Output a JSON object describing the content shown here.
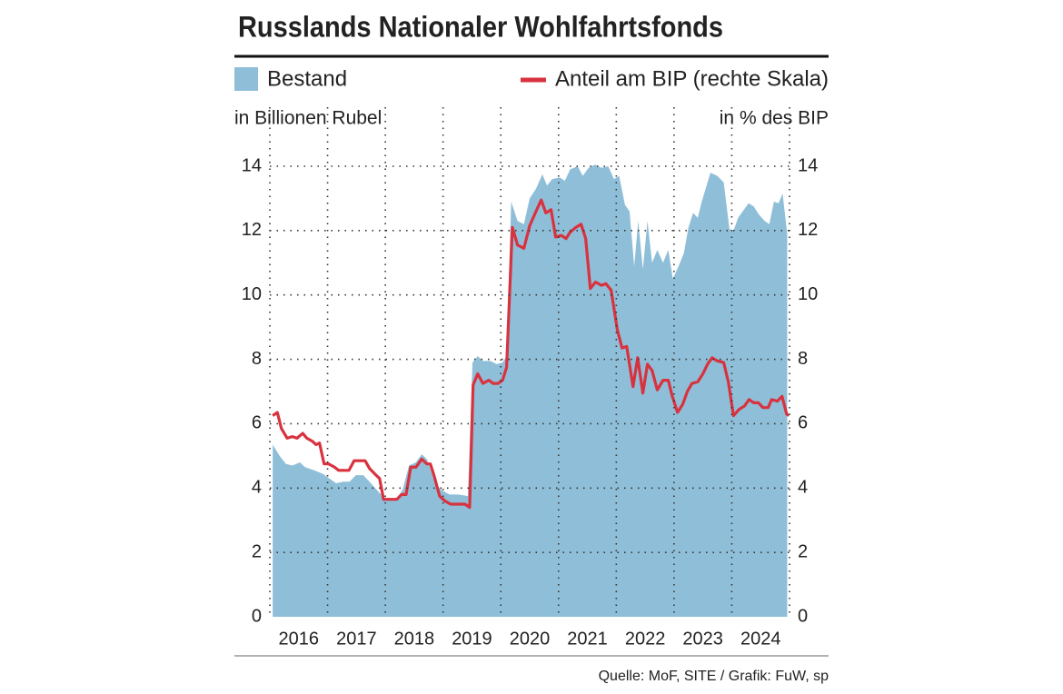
{
  "chart_data": {
    "type": "area",
    "title": "Russlands Nationaler Wohlfahrtsfonds",
    "y_label": "in Billionen Rubel",
    "y2_label": "in % des BIP",
    "source": "Quelle: MoF, SITE / Grafik: FuW, sp",
    "legend": "top",
    "grid": true,
    "xlim": [
      2016,
      2025
    ],
    "xticks": [
      2016,
      2017,
      2018,
      2019,
      2020,
      2021,
      2022,
      2023,
      2024
    ],
    "ylim": [
      0,
      14
    ],
    "yticks": [
      0,
      2,
      4,
      6,
      8,
      10,
      12,
      14
    ],
    "y2lim": [
      0,
      14
    ],
    "y2ticks": [
      0,
      2,
      4,
      6,
      8,
      10,
      12,
      14
    ],
    "series": [
      {
        "name": "Bestand",
        "type": "area",
        "color": "#8fbfd8",
        "x": [
          2016.05,
          2016.17,
          2016.28,
          2016.39,
          2016.52,
          2016.61,
          2016.77,
          2016.91,
          2016.99,
          2017.15,
          2017.27,
          2017.38,
          2017.49,
          2017.62,
          2017.75,
          2017.9,
          2017.98,
          2018.09,
          2018.2,
          2018.3,
          2018.41,
          2018.53,
          2018.63,
          2018.72,
          2018.85,
          2018.96,
          2019.11,
          2019.27,
          2019.43,
          2019.51,
          2019.6,
          2019.69,
          2019.82,
          2019.93,
          2020.03,
          2020.1,
          2020.18,
          2020.29,
          2020.4,
          2020.5,
          2020.61,
          2020.72,
          2020.8,
          2020.89,
          2021.02,
          2021.11,
          2021.2,
          2021.33,
          2021.42,
          2021.52,
          2021.63,
          2021.74,
          2021.86,
          2021.96,
          2022.05,
          2022.15,
          2022.23,
          2022.31,
          2022.38,
          2022.46,
          2022.54,
          2022.62,
          2022.71,
          2022.81,
          2022.9,
          2022.98,
          2023.08,
          2023.17,
          2023.25,
          2023.33,
          2023.41,
          2023.48,
          2023.63,
          2023.75,
          2023.86,
          2023.96,
          2024.03,
          2024.11,
          2024.19,
          2024.29,
          2024.38,
          2024.47,
          2024.57,
          2024.65,
          2024.73,
          2024.81,
          2024.88,
          2024.96
        ],
        "values": [
          5.35,
          5.0,
          4.75,
          4.7,
          4.8,
          4.65,
          4.55,
          4.45,
          4.35,
          4.15,
          4.2,
          4.2,
          4.4,
          4.4,
          4.15,
          3.85,
          3.7,
          3.65,
          3.65,
          3.95,
          4.7,
          4.8,
          5.05,
          4.9,
          4.2,
          3.95,
          3.8,
          3.8,
          3.75,
          7.9,
          8.1,
          7.95,
          7.95,
          7.85,
          7.9,
          8.1,
          12.9,
          12.3,
          12.2,
          13.0,
          13.3,
          13.75,
          13.4,
          13.6,
          13.65,
          13.55,
          13.9,
          14.0,
          13.7,
          13.95,
          14.05,
          13.95,
          14.0,
          13.6,
          13.7,
          12.8,
          12.6,
          10.9,
          12.3,
          10.8,
          12.3,
          11.0,
          11.4,
          11.0,
          11.4,
          10.5,
          10.9,
          11.3,
          12.1,
          12.55,
          12.4,
          12.9,
          13.8,
          13.7,
          13.5,
          12.05,
          12.0,
          12.4,
          12.6,
          12.85,
          12.75,
          12.5,
          12.3,
          12.2,
          12.9,
          12.85,
          13.15,
          11.9
        ]
      },
      {
        "name": "Anteil am BIP (rechte Skala)",
        "type": "line",
        "axis": "y2",
        "color": "#d9323f",
        "x": [
          2016.05,
          2016.13,
          2016.2,
          2016.3,
          2016.39,
          2016.47,
          2016.57,
          2016.64,
          2016.74,
          2016.8,
          2016.86,
          2016.94,
          2017.02,
          2017.12,
          2017.19,
          2017.31,
          2017.37,
          2017.46,
          2017.57,
          2017.65,
          2017.73,
          2017.84,
          2017.9,
          2017.97,
          2018.09,
          2018.2,
          2018.28,
          2018.36,
          2018.44,
          2018.53,
          2018.63,
          2018.72,
          2018.78,
          2018.85,
          2018.94,
          2019.03,
          2019.13,
          2019.25,
          2019.38,
          2019.46,
          2019.52,
          2019.6,
          2019.69,
          2019.79,
          2019.87,
          2019.95,
          2020.03,
          2020.1,
          2020.2,
          2020.29,
          2020.4,
          2020.5,
          2020.61,
          2020.7,
          2020.78,
          2020.87,
          2020.95,
          2021.05,
          2021.13,
          2021.2,
          2021.3,
          2021.39,
          2021.47,
          2021.55,
          2021.64,
          2021.74,
          2021.82,
          2021.91,
          2022.02,
          2022.1,
          2022.18,
          2022.29,
          2022.37,
          2022.46,
          2022.54,
          2022.62,
          2022.71,
          2022.81,
          2022.9,
          2022.97,
          2023.06,
          2023.15,
          2023.23,
          2023.31,
          2023.41,
          2023.5,
          2023.58,
          2023.66,
          2023.75,
          2023.86,
          2023.94,
          2024.03,
          2024.13,
          2024.22,
          2024.3,
          2024.38,
          2024.46,
          2024.54,
          2024.63,
          2024.69,
          2024.79,
          2024.87,
          2024.95,
          2024.99
        ],
        "values": [
          6.25,
          6.35,
          5.85,
          5.55,
          5.6,
          5.55,
          5.7,
          5.55,
          5.45,
          5.35,
          5.4,
          4.75,
          4.75,
          4.65,
          4.55,
          4.55,
          4.55,
          4.85,
          4.85,
          4.85,
          4.6,
          4.4,
          4.3,
          3.65,
          3.65,
          3.65,
          3.8,
          3.8,
          4.65,
          4.65,
          4.9,
          4.75,
          4.75,
          4.35,
          3.75,
          3.6,
          3.5,
          3.5,
          3.5,
          3.4,
          7.2,
          7.55,
          7.25,
          7.35,
          7.25,
          7.25,
          7.35,
          7.75,
          12.1,
          11.55,
          11.45,
          12.15,
          12.6,
          12.95,
          12.55,
          12.65,
          11.8,
          11.85,
          11.75,
          11.95,
          12.1,
          12.2,
          11.75,
          10.2,
          10.4,
          10.3,
          10.35,
          10.15,
          8.9,
          8.35,
          8.4,
          7.15,
          8.05,
          6.95,
          7.85,
          7.65,
          7.05,
          7.35,
          7.35,
          6.85,
          6.35,
          6.6,
          7.0,
          7.25,
          7.3,
          7.55,
          7.85,
          8.05,
          7.95,
          7.9,
          7.3,
          6.25,
          6.45,
          6.55,
          6.75,
          6.65,
          6.65,
          6.5,
          6.5,
          6.75,
          6.7,
          6.85,
          6.3,
          6.25
        ]
      }
    ]
  }
}
